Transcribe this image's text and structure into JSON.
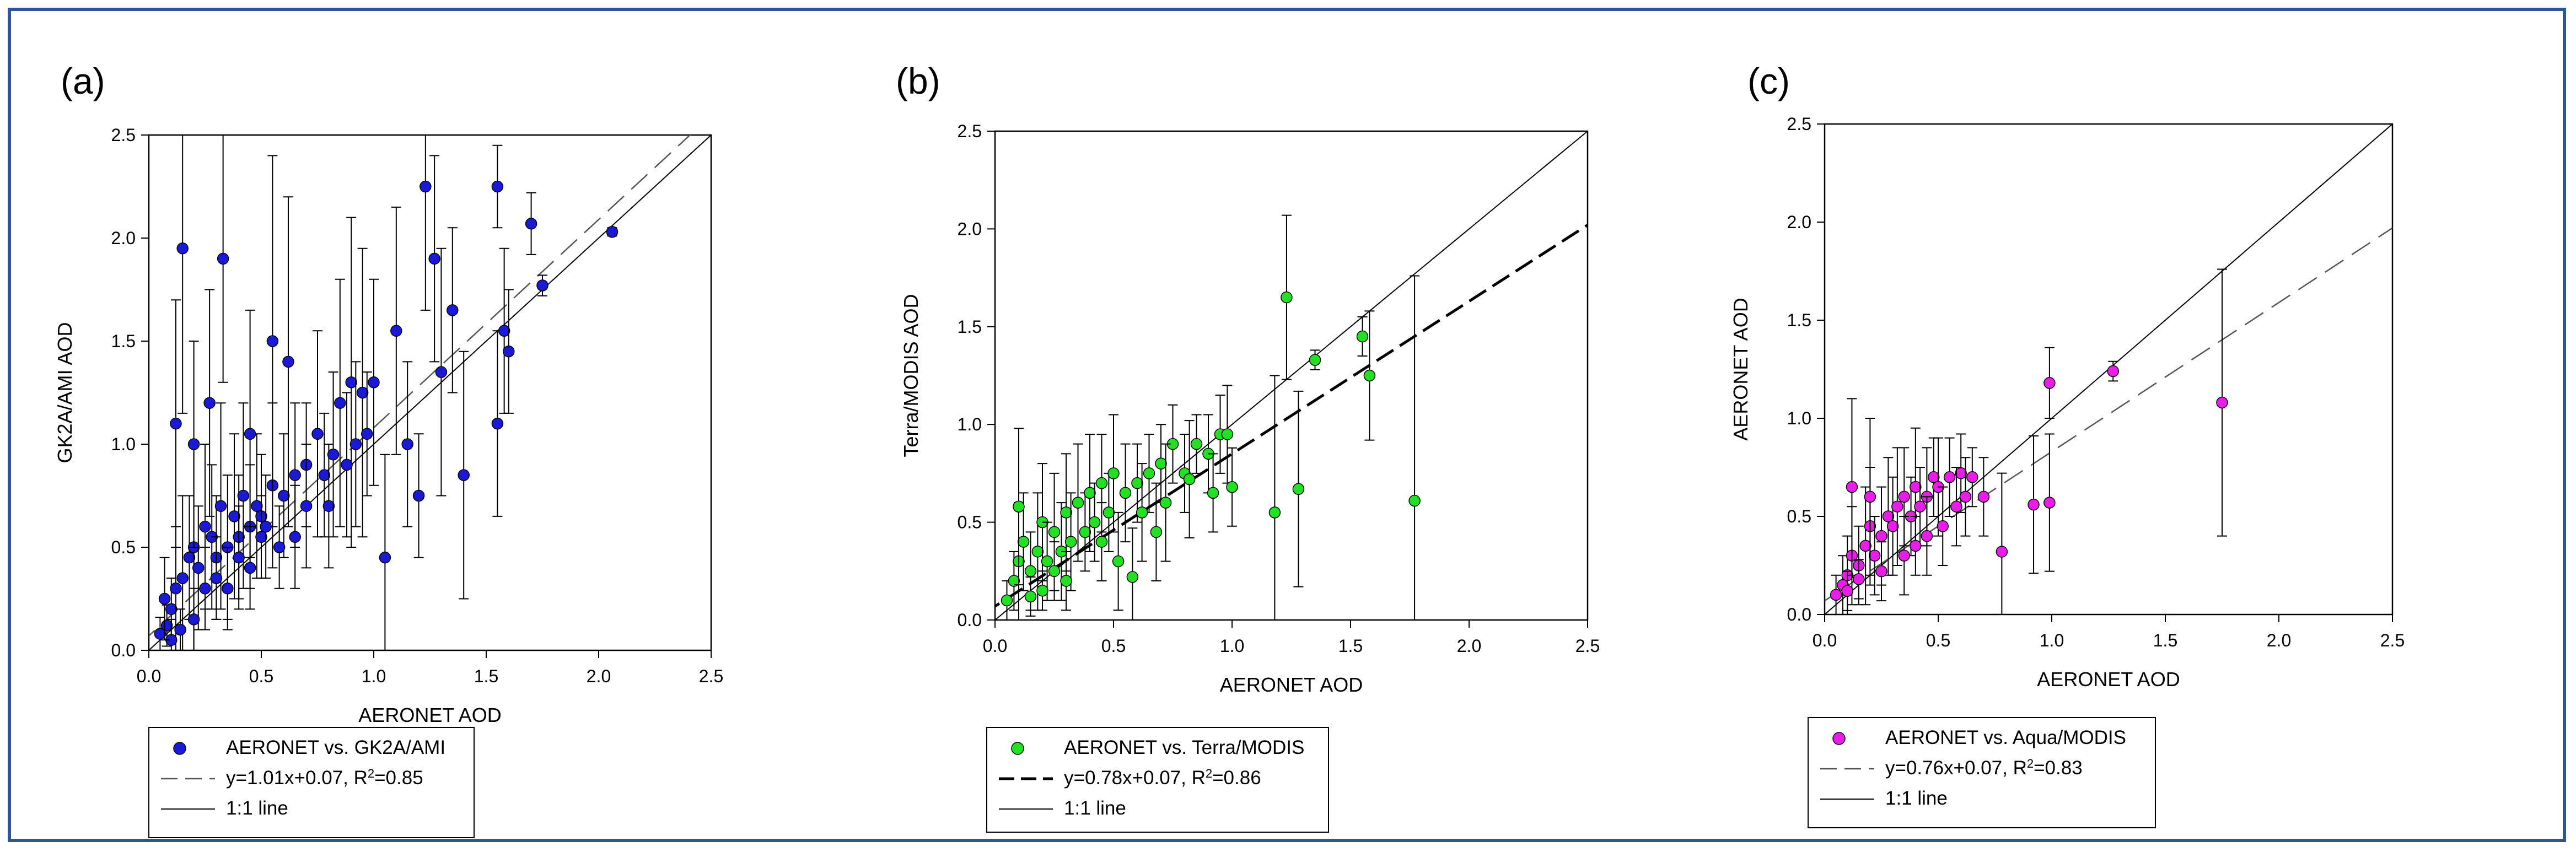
{
  "chart_data": [
    {
      "panel": "(a)",
      "type": "scatter",
      "xlabel": "AERONET AOD",
      "ylabel": "GK2A/AMI AOD",
      "xlim": [
        0.0,
        2.5
      ],
      "ylim": [
        0.0,
        2.5
      ],
      "xticks": [
        "0.0",
        "0.5",
        "1.0",
        "1.5",
        "2.0",
        "2.5"
      ],
      "yticks": [
        "0.0",
        "0.5",
        "1.0",
        "1.5",
        "2.0",
        "2.5"
      ],
      "marker_color": "#1a1ad6",
      "regression": {
        "slope": 1.01,
        "intercept": 0.07,
        "style": "dashed-light"
      },
      "series": [
        {
          "name": "AERONET vs. GK2A/AMI",
          "points": [
            [
              0.08,
              0.12,
              0.1
            ],
            [
              0.1,
              0.2,
              0.15
            ],
            [
              0.12,
              0.3,
              0.3
            ],
            [
              0.15,
              0.35,
              0.4
            ],
            [
              0.18,
              0.45,
              0.3
            ],
            [
              0.2,
              0.5,
              0.5
            ],
            [
              0.22,
              0.4,
              0.3
            ],
            [
              0.25,
              0.6,
              0.4
            ],
            [
              0.28,
              0.55,
              0.35
            ],
            [
              0.3,
              0.45,
              0.3
            ],
            [
              0.32,
              0.7,
              0.5
            ],
            [
              0.35,
              0.5,
              0.35
            ],
            [
              0.38,
              0.65,
              0.4
            ],
            [
              0.4,
              0.55,
              0.3
            ],
            [
              0.42,
              0.75,
              0.45
            ],
            [
              0.45,
              0.6,
              0.3
            ],
            [
              0.48,
              0.7,
              0.35
            ],
            [
              0.5,
              0.65,
              0.3
            ],
            [
              0.55,
              0.8,
              0.4
            ],
            [
              0.6,
              0.75,
              0.3
            ],
            [
              0.65,
              0.85,
              0.35
            ],
            [
              0.7,
              0.9,
              0.3
            ],
            [
              0.15,
              1.95,
              0.8
            ],
            [
              0.33,
              1.9,
              0.6
            ],
            [
              0.12,
              1.1,
              0.6
            ],
            [
              0.2,
              1.0,
              0.5
            ],
            [
              0.27,
              1.2,
              0.55
            ],
            [
              0.45,
              1.05,
              0.6
            ],
            [
              0.55,
              1.5,
              0.9
            ],
            [
              0.62,
              1.4,
              0.8
            ],
            [
              0.75,
              1.05,
              0.5
            ],
            [
              0.85,
              1.2,
              0.6
            ],
            [
              0.9,
              1.3,
              0.8
            ],
            [
              0.95,
              1.25,
              0.7
            ],
            [
              1.0,
              1.3,
              0.5
            ],
            [
              1.05,
              0.45,
              0.5
            ],
            [
              1.1,
              1.55,
              0.6
            ],
            [
              1.15,
              1.0,
              0.4
            ],
            [
              1.2,
              0.75,
              0.3
            ],
            [
              1.23,
              2.25,
              0.6
            ],
            [
              1.27,
              1.9,
              0.5
            ],
            [
              1.3,
              1.35,
              0.6
            ],
            [
              1.35,
              1.65,
              0.4
            ],
            [
              1.4,
              0.85,
              0.6
            ],
            [
              1.55,
              2.25,
              0.2
            ],
            [
              1.55,
              1.1,
              0.45
            ],
            [
              1.58,
              1.55,
              0.4
            ],
            [
              1.6,
              1.45,
              0.3
            ],
            [
              1.7,
              2.07,
              0.15
            ],
            [
              1.75,
              1.77,
              0.05
            ],
            [
              2.06,
              2.03,
              0.02
            ],
            [
              0.5,
              0.55,
              0.2
            ],
            [
              0.52,
              0.6,
              0.25
            ],
            [
              0.58,
              0.5,
              0.2
            ],
            [
              0.25,
              0.3,
              0.2
            ],
            [
              0.3,
              0.35,
              0.2
            ],
            [
              0.1,
              0.05,
              0.1
            ],
            [
              0.14,
              0.1,
              0.1
            ],
            [
              0.2,
              0.15,
              0.15
            ],
            [
              0.05,
              0.08,
              0.08
            ],
            [
              0.07,
              0.25,
              0.2
            ],
            [
              0.35,
              0.3,
              0.2
            ],
            [
              0.4,
              0.45,
              0.25
            ],
            [
              0.45,
              0.4,
              0.2
            ],
            [
              0.65,
              0.55,
              0.25
            ],
            [
              0.7,
              0.7,
              0.3
            ],
            [
              0.78,
              0.85,
              0.3
            ],
            [
              0.8,
              0.7,
              0.3
            ],
            [
              0.82,
              0.95,
              0.4
            ],
            [
              0.88,
              0.9,
              0.35
            ],
            [
              0.92,
              1.0,
              0.4
            ],
            [
              0.97,
              1.05,
              0.3
            ]
          ]
        }
      ],
      "legend": [
        {
          "label": "AERONET vs. GK2A/AMI",
          "kind": "marker"
        },
        {
          "label": "y=1.01x+0.07, R",
          "sup": "2",
          "after": "=0.85",
          "kind": "dashed"
        },
        {
          "label": "1:1 line",
          "kind": "solid"
        }
      ]
    },
    {
      "panel": "(b)",
      "type": "scatter",
      "xlabel": "AERONET AOD",
      "ylabel": "Terra/MODIS AOD",
      "xlim": [
        0.0,
        2.5
      ],
      "ylim": [
        0.0,
        2.5
      ],
      "xticks": [
        "0.0",
        "0.5",
        "1.0",
        "1.5",
        "2.0",
        "2.5"
      ],
      "yticks": [
        "0.0",
        "0.5",
        "1.0",
        "1.5",
        "2.0",
        "2.5"
      ],
      "marker_color": "#22e022",
      "regression": {
        "slope": 0.78,
        "intercept": 0.07,
        "style": "dashed-bold"
      },
      "series": [
        {
          "name": "AERONET vs. Terra/MODIS",
          "points": [
            [
              0.05,
              0.1,
              0.1
            ],
            [
              0.08,
              0.2,
              0.15
            ],
            [
              0.1,
              0.3,
              0.3
            ],
            [
              0.12,
              0.4,
              0.25
            ],
            [
              0.15,
              0.25,
              0.2
            ],
            [
              0.18,
              0.35,
              0.3
            ],
            [
              0.2,
              0.5,
              0.3
            ],
            [
              0.22,
              0.3,
              0.2
            ],
            [
              0.25,
              0.45,
              0.3
            ],
            [
              0.28,
              0.35,
              0.25
            ],
            [
              0.3,
              0.55,
              0.3
            ],
            [
              0.32,
              0.4,
              0.25
            ],
            [
              0.35,
              0.6,
              0.3
            ],
            [
              0.38,
              0.45,
              0.2
            ],
            [
              0.4,
              0.65,
              0.3
            ],
            [
              0.42,
              0.5,
              0.2
            ],
            [
              0.45,
              0.7,
              0.25
            ],
            [
              0.48,
              0.55,
              0.2
            ],
            [
              0.5,
              0.75,
              0.3
            ],
            [
              0.55,
              0.65,
              0.25
            ],
            [
              0.6,
              0.7,
              0.2
            ],
            [
              0.1,
              0.58,
              0.4
            ],
            [
              0.65,
              0.75,
              0.2
            ],
            [
              0.7,
              0.8,
              0.2
            ],
            [
              0.75,
              0.9,
              0.2
            ],
            [
              0.8,
              0.75,
              0.2
            ],
            [
              0.85,
              0.9,
              0.15
            ],
            [
              0.9,
              0.85,
              0.2
            ],
            [
              0.95,
              0.95,
              0.2
            ],
            [
              0.98,
              0.95,
              0.25
            ],
            [
              0.82,
              0.72,
              0.3
            ],
            [
              0.92,
              0.65,
              0.2
            ],
            [
              1.0,
              0.68,
              0.2
            ],
            [
              1.18,
              0.55,
              0.7
            ],
            [
              1.23,
              1.65,
              0.42
            ],
            [
              1.28,
              0.67,
              0.5
            ],
            [
              1.35,
              1.33,
              0.05
            ],
            [
              1.55,
              1.45,
              0.1
            ],
            [
              1.58,
              1.25,
              0.33
            ],
            [
              1.77,
              0.61,
              1.15
            ],
            [
              0.58,
              0.22,
              0.25
            ],
            [
              0.52,
              0.3,
              0.25
            ],
            [
              0.3,
              0.2,
              0.15
            ],
            [
              0.2,
              0.15,
              0.1
            ],
            [
              0.15,
              0.12,
              0.1
            ],
            [
              0.25,
              0.25,
              0.15
            ],
            [
              0.45,
              0.4,
              0.2
            ],
            [
              0.62,
              0.55,
              0.25
            ],
            [
              0.68,
              0.45,
              0.25
            ],
            [
              0.72,
              0.6,
              0.3
            ]
          ]
        }
      ],
      "legend": [
        {
          "label": "AERONET vs. Terra/MODIS",
          "kind": "marker"
        },
        {
          "label": "y=0.78x+0.07, R",
          "sup": "2",
          "after": "=0.86",
          "kind": "dashed-bold"
        },
        {
          "label": "1:1 line",
          "kind": "solid"
        }
      ]
    },
    {
      "panel": "(c)",
      "type": "scatter",
      "xlabel": "AERONET AOD",
      "ylabel": "AERONET AOD",
      "xlim": [
        0.0,
        2.5
      ],
      "ylim": [
        0.0,
        2.5
      ],
      "xticks": [
        "0.0",
        "0.5",
        "1.0",
        "1.5",
        "2.0",
        "2.5"
      ],
      "yticks": [
        "0.0",
        "0.5",
        "1.0",
        "1.5",
        "2.0",
        "2.5"
      ],
      "marker_color": "#e81ee8",
      "regression": {
        "slope": 0.76,
        "intercept": 0.07,
        "style": "dashed-light"
      },
      "series": [
        {
          "name": "AERONET vs. Aqua/MODIS",
          "points": [
            [
              0.05,
              0.1,
              0.1
            ],
            [
              0.08,
              0.15,
              0.15
            ],
            [
              0.1,
              0.2,
              0.2
            ],
            [
              0.12,
              0.3,
              0.25
            ],
            [
              0.15,
              0.25,
              0.2
            ],
            [
              0.18,
              0.35,
              0.3
            ],
            [
              0.2,
              0.45,
              0.3
            ],
            [
              0.22,
              0.3,
              0.2
            ],
            [
              0.25,
              0.4,
              0.25
            ],
            [
              0.28,
              0.5,
              0.3
            ],
            [
              0.3,
              0.45,
              0.25
            ],
            [
              0.32,
              0.55,
              0.3
            ],
            [
              0.35,
              0.6,
              0.25
            ],
            [
              0.38,
              0.5,
              0.2
            ],
            [
              0.4,
              0.65,
              0.3
            ],
            [
              0.42,
              0.55,
              0.2
            ],
            [
              0.45,
              0.6,
              0.25
            ],
            [
              0.48,
              0.7,
              0.2
            ],
            [
              0.5,
              0.65,
              0.25
            ],
            [
              0.55,
              0.7,
              0.2
            ],
            [
              0.6,
              0.72,
              0.2
            ],
            [
              0.65,
              0.7,
              0.15
            ],
            [
              0.7,
              0.6,
              0.2
            ],
            [
              0.12,
              0.65,
              0.45
            ],
            [
              0.2,
              0.6,
              0.4
            ],
            [
              0.78,
              0.32,
              0.4
            ],
            [
              0.92,
              0.56,
              0.35
            ],
            [
              0.99,
              1.18,
              0.18
            ],
            [
              0.99,
              0.57,
              0.35
            ],
            [
              1.27,
              1.24,
              0.05
            ],
            [
              1.75,
              1.08,
              0.68
            ],
            [
              0.1,
              0.12,
              0.1
            ],
            [
              0.15,
              0.18,
              0.1
            ],
            [
              0.25,
              0.22,
              0.15
            ],
            [
              0.35,
              0.3,
              0.2
            ],
            [
              0.45,
              0.4,
              0.2
            ],
            [
              0.52,
              0.45,
              0.2
            ],
            [
              0.58,
              0.55,
              0.2
            ],
            [
              0.62,
              0.6,
              0.2
            ],
            [
              0.4,
              0.35,
              0.15
            ]
          ]
        }
      ],
      "legend": [
        {
          "label": "AERONET vs. Aqua/MODIS",
          "kind": "marker"
        },
        {
          "label": "y=0.76x+0.07, R",
          "sup": "2",
          "after": "=0.83",
          "kind": "dashed"
        },
        {
          "label": "1:1 line",
          "kind": "solid"
        }
      ]
    }
  ]
}
